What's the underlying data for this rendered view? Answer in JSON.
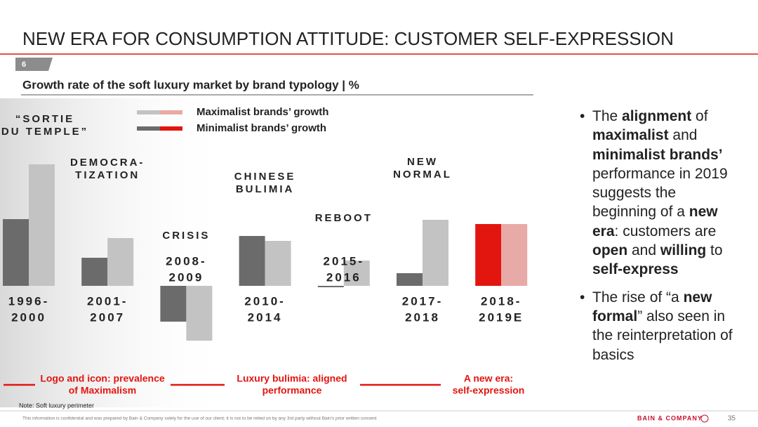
{
  "header": {
    "title": "NEW ERA FOR CONSUMPTION ATTITUDE: CUSTOMER SELF-EXPRESSION",
    "page": "6"
  },
  "chart_data": {
    "type": "bar",
    "title": "Growth rate of the soft luxury market by brand typology | %",
    "categories": [
      [
        "1996-",
        "2000"
      ],
      [
        "2001-",
        "2007"
      ],
      [
        "2008-",
        "2009"
      ],
      [
        "2010-",
        "2014"
      ],
      [
        "2015-",
        "2016"
      ],
      [
        "2017-",
        "2018"
      ],
      [
        "2018-",
        "2019E"
      ]
    ],
    "eras": [
      [
        "“SORTIE",
        "DU TEMPLE”"
      ],
      [
        "DEMOCRA-",
        "TIZATION"
      ],
      [
        "CRISIS"
      ],
      [
        "CHINESE",
        "BULIMIA"
      ],
      [
        "REBOOT"
      ],
      [
        "NEW",
        "NORMAL"
      ],
      null
    ],
    "series": [
      {
        "name": "Minimalist brands’ growth",
        "colors": [
          "#6b6b6b",
          "#6b6b6b",
          "#6b6b6b",
          "#6b6b6b",
          "#6b6b6b",
          "#6b6b6b",
          "#e2150f"
        ],
        "values": [
          9.5,
          4,
          -5.1,
          7.1,
          -0.2,
          1.8,
          8.8
        ]
      },
      {
        "name": "Maximalist brands’ growth",
        "colors": [
          "#c3c3c3",
          "#c3c3c3",
          "#c3c3c3",
          "#c3c3c3",
          "#c3c3c3",
          "#c3c3c3",
          "#e8aaa6"
        ],
        "values": [
          17.3,
          6.8,
          -7.8,
          6.4,
          3.6,
          9.4,
          8.8
        ]
      }
    ],
    "annotations": [
      [
        "Logo and icon: prevalence",
        "of Maximalism"
      ],
      [
        "Luxury bulimia: aligned",
        "performance"
      ],
      [
        "A new era:",
        "self-expression"
      ]
    ]
  },
  "bullets": [
    [
      {
        "t": "The "
      },
      {
        "t": "alignment",
        "b": true
      },
      {
        "t": " of "
      },
      {
        "t": "maximalist",
        "b": true
      },
      {
        "t": " and "
      },
      {
        "t": "minimalist brands’",
        "b": true
      },
      {
        "t": " performance in 2019 suggests the beginning of a "
      },
      {
        "t": "new era",
        "b": true
      },
      {
        "t": ": customers are "
      },
      {
        "t": "open",
        "b": true
      },
      {
        "t": " and "
      },
      {
        "t": "willing",
        "b": true
      },
      {
        "t": " to "
      },
      {
        "t": "self-express",
        "b": true
      }
    ],
    [
      {
        "t": "The rise of “a "
      },
      {
        "t": "new formal",
        "b": true
      },
      {
        "t": "” also seen in the reinterpretation of basics"
      }
    ]
  ],
  "footer": {
    "note": "Note: Soft luxury perimeter",
    "disclaimer": "This information is confidential and was prepared by Bain & Company solely for the use of our client; it is not to be relied on by any 3rd party without Bain's prior written consent",
    "brand": "BAIN & COMPANY",
    "page_number": "35"
  }
}
